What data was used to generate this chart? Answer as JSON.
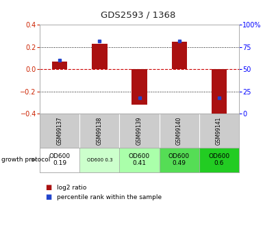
{
  "title": "GDS2593 / 1368",
  "samples": [
    "GSM99137",
    "GSM99138",
    "GSM99139",
    "GSM99140",
    "GSM99141"
  ],
  "log2_ratio": [
    0.07,
    0.23,
    -0.32,
    0.25,
    -0.42
  ],
  "percentile_rank": [
    60,
    82,
    18,
    82,
    18
  ],
  "ylim": [
    -0.4,
    0.4
  ],
  "y2lim": [
    0,
    100
  ],
  "yticks": [
    -0.4,
    -0.2,
    0.0,
    0.2,
    0.4
  ],
  "y2ticks": [
    0,
    25,
    50,
    75,
    100
  ],
  "bar_color": "#aa1111",
  "dot_color": "#2244cc",
  "background_color": "#ffffff",
  "plot_bg": "#ffffff",
  "hline_color": "#cc0000",
  "sample_bg": "#cccccc",
  "protocol_labels": [
    "OD600\n0.19",
    "OD600 0.3",
    "OD600\n0.41",
    "OD600\n0.49",
    "OD600\n0.6"
  ],
  "protocol_bg": [
    "#ffffff",
    "#ccffcc",
    "#aaffaa",
    "#55dd55",
    "#22cc22"
  ],
  "title_color": "#333333",
  "left_label": "growth protocol",
  "legend_red": "log2 ratio",
  "legend_blue": "percentile rank within the sample"
}
